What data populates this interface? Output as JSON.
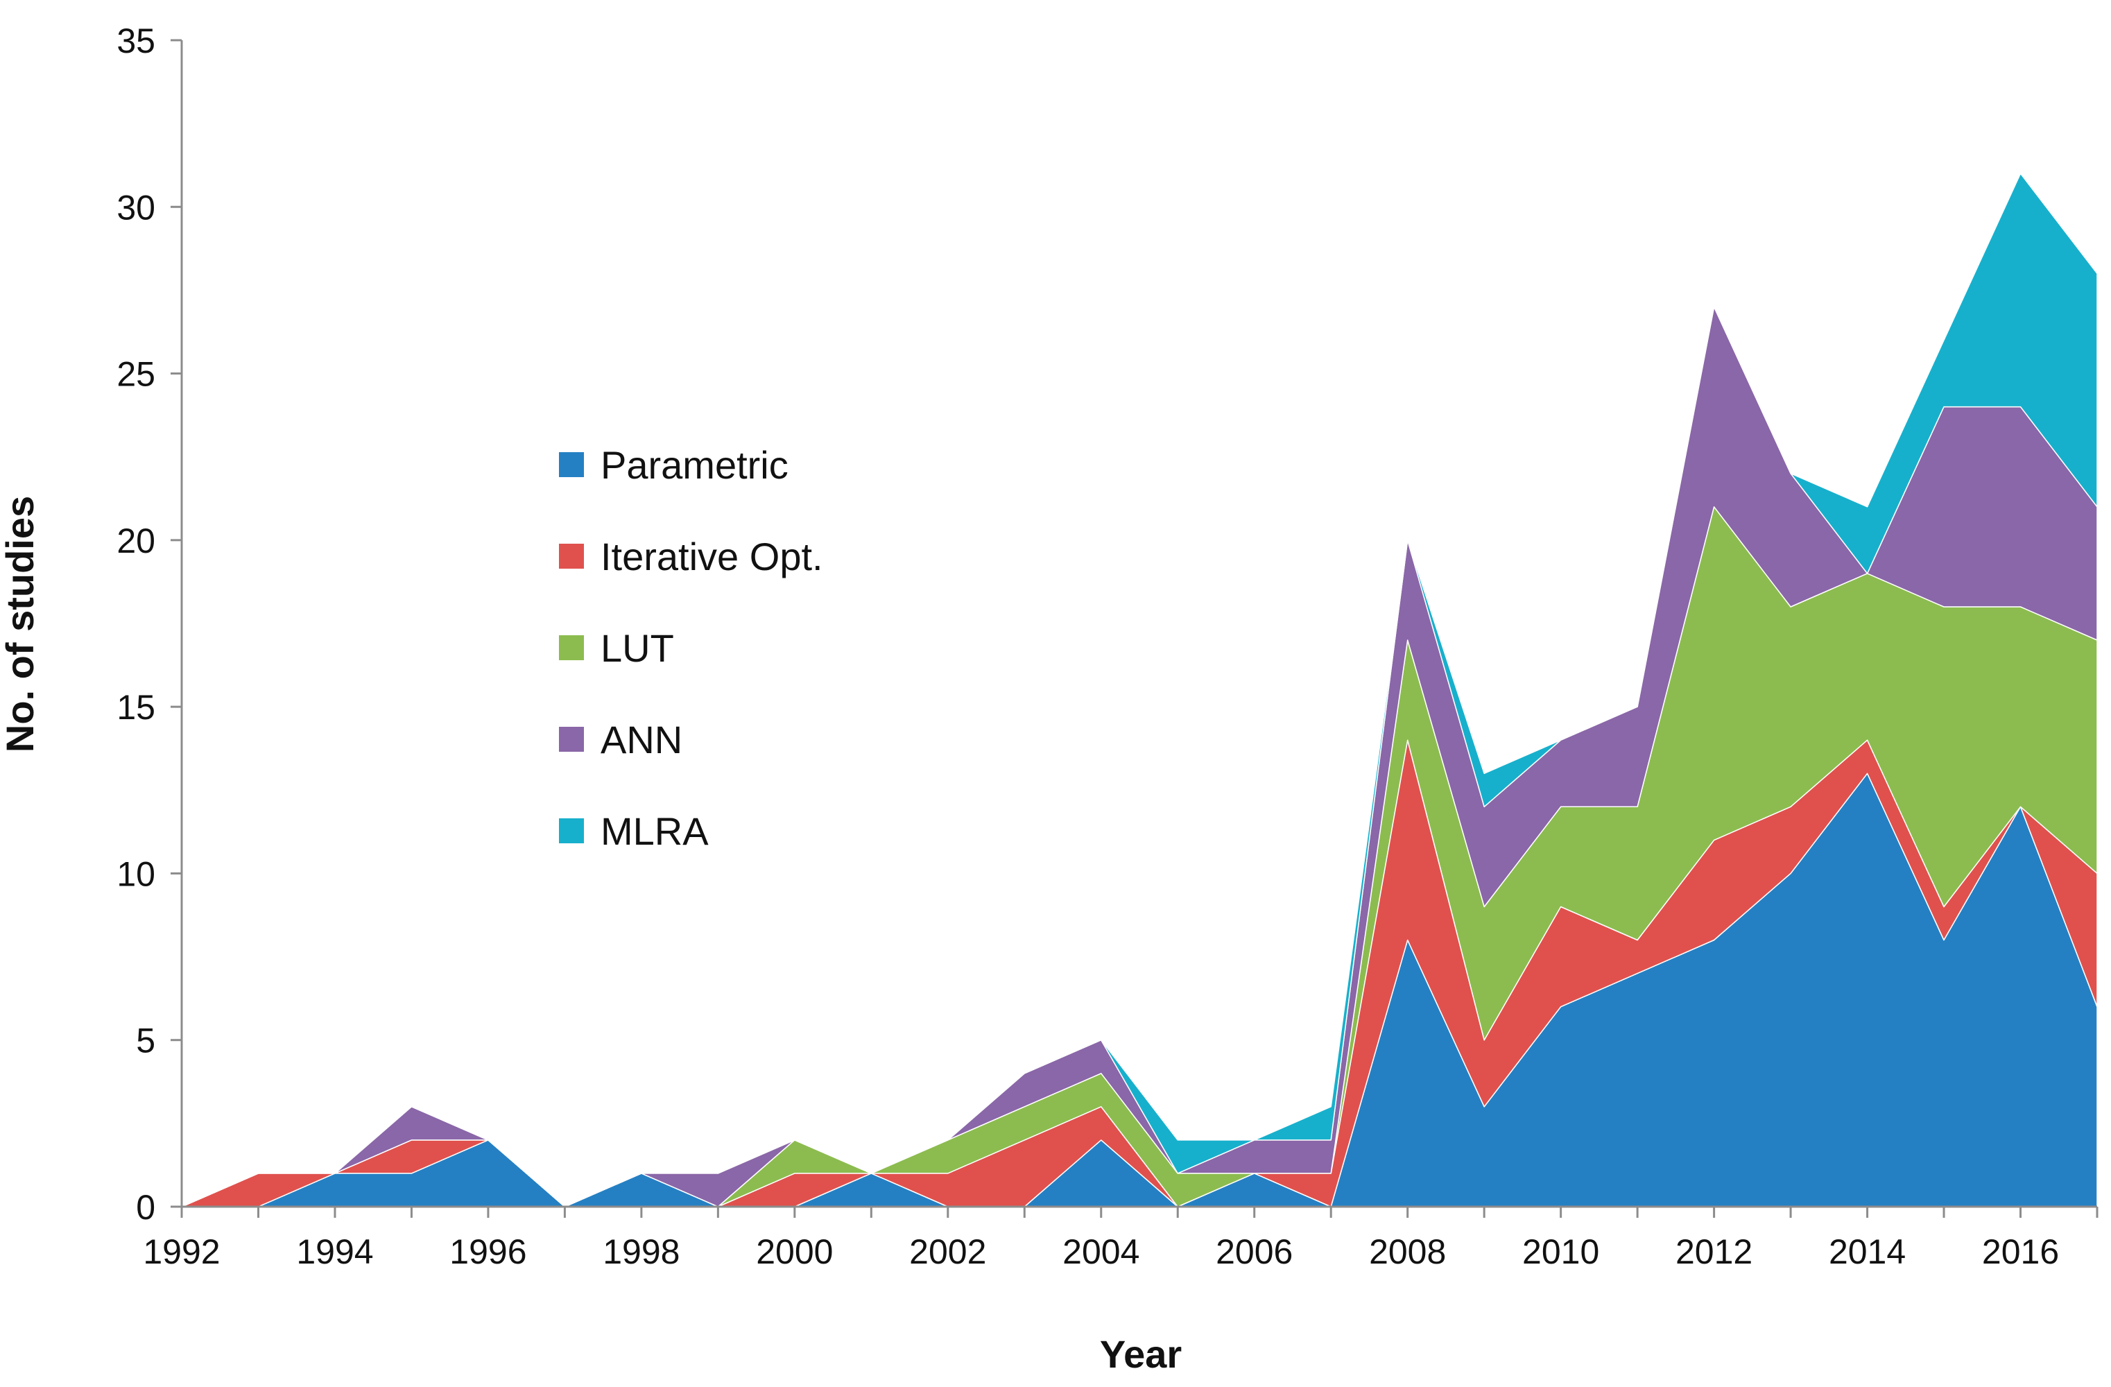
{
  "chart_data": {
    "type": "area",
    "stacked": true,
    "title": "",
    "xlabel": "Year",
    "ylabel": "No. of studies",
    "ylim": [
      0,
      35
    ],
    "yticks": [
      0,
      5,
      10,
      15,
      20,
      25,
      30,
      35
    ],
    "x": [
      1992,
      1993,
      1994,
      1995,
      1996,
      1997,
      1998,
      1999,
      2000,
      2001,
      2002,
      2003,
      2004,
      2005,
      2006,
      2007,
      2008,
      2009,
      2010,
      2011,
      2012,
      2013,
      2014,
      2015,
      2016,
      2017
    ],
    "xtick_labels": [
      "1992",
      "1994",
      "1996",
      "1998",
      "2000",
      "2002",
      "2004",
      "2006",
      "2008",
      "2010",
      "2012",
      "2014",
      "2016"
    ],
    "legend_position": "center-left",
    "series": [
      {
        "name": "Parametric",
        "color": "#2580c3",
        "values": [
          0,
          0,
          1,
          1,
          2,
          0,
          1,
          0,
          0,
          1,
          0,
          0,
          2,
          0,
          1,
          0,
          8,
          3,
          6,
          7,
          8,
          10,
          13,
          8,
          12,
          6
        ]
      },
      {
        "name": "Iterative Opt.",
        "color": "#e0514d",
        "values": [
          0,
          1,
          0,
          1,
          0,
          0,
          0,
          0,
          1,
          0,
          1,
          2,
          1,
          0,
          0,
          1,
          6,
          2,
          3,
          1,
          3,
          2,
          1,
          1,
          0,
          4
        ]
      },
      {
        "name": "LUT",
        "color": "#8cbc4f",
        "values": [
          0,
          0,
          0,
          0,
          0,
          0,
          0,
          0,
          1,
          0,
          1,
          1,
          1,
          1,
          0,
          0,
          3,
          4,
          3,
          4,
          10,
          6,
          5,
          9,
          6,
          7
        ]
      },
      {
        "name": "ANN",
        "color": "#8a67a8",
        "values": [
          0,
          0,
          0,
          1,
          0,
          0,
          0,
          1,
          0,
          0,
          0,
          1,
          1,
          0,
          1,
          1,
          3,
          3,
          2,
          3,
          6,
          4,
          0,
          6,
          6,
          4
        ]
      },
      {
        "name": "MLRA",
        "color": "#17b0cc",
        "values": [
          0,
          0,
          0,
          0,
          0,
          0,
          0,
          0,
          0,
          0,
          0,
          0,
          0,
          1,
          0,
          1,
          0,
          1,
          0,
          0,
          0,
          0,
          2,
          2,
          7,
          7
        ]
      }
    ]
  }
}
